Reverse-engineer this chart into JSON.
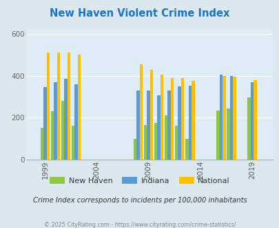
{
  "title": "New Haven Violent Crime Index",
  "title_color": "#1874cd",
  "subtitle": "Crime Index corresponds to incidents per 100,000 inhabitants",
  "footer": "© 2025 CityRating.com - https://www.cityrating.com/crime-statistics/",
  "fig_bg_color": "#dce8f0",
  "plot_bg_color": "#deedf5",
  "years": [
    1999,
    2000,
    2001,
    2002,
    2008,
    2009,
    2010,
    2011,
    2012,
    2013,
    2016,
    2017,
    2019
  ],
  "new_haven": [
    150,
    230,
    280,
    160,
    100,
    165,
    175,
    210,
    160,
    100,
    235,
    245,
    298
  ],
  "indiana": [
    345,
    370,
    385,
    360,
    330,
    330,
    308,
    330,
    348,
    352,
    405,
    398,
    370
  ],
  "national": [
    510,
    510,
    510,
    500,
    455,
    428,
    405,
    390,
    390,
    375,
    400,
    396,
    378
  ],
  "xtick_positions": [
    1999,
    2004,
    2009,
    2014,
    2019
  ],
  "xtick_labels": [
    "1999",
    "2004",
    "2009",
    "2014",
    "2019"
  ],
  "ylim": [
    0,
    620
  ],
  "yticks": [
    0,
    200,
    400,
    600
  ],
  "color_new_haven": "#8dc63f",
  "color_indiana": "#5b9bd5",
  "color_national": "#ffc000",
  "bar_width": 0.3,
  "xlim_left": 1997.2,
  "xlim_right": 2021.0,
  "legend_labels": [
    "New Haven",
    "Indiana",
    "National"
  ]
}
